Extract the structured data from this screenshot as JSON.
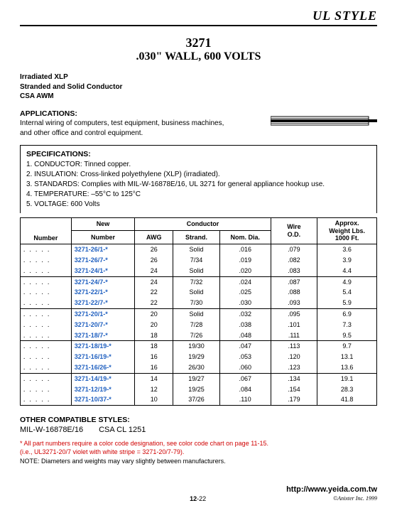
{
  "header": {
    "ulstyle": "UL STYLE"
  },
  "title": {
    "num": "3271",
    "sub": ".030\" WALL, 600 VOLTS"
  },
  "subtitle": [
    "Irradiated XLP",
    "Stranded and Solid Conductor",
    "CSA AWM"
  ],
  "applications": {
    "head": "APPLICATIONS:",
    "text": "Internal wiring of computers, test equipment, business machines, and other office and control equipment."
  },
  "specifications": {
    "head": "SPECIFICATIONS:",
    "items": [
      "1.  CONDUCTOR: Tinned copper.",
      "2.  INSULATION: Cross-linked polyethylene (XLP) (irradiated).",
      "3.  STANDARDS: Complies with MIL-W-16878E/16, UL 3271 for general appliance hookup use.",
      "4.  TEMPERATURE: –55°C to 125°C",
      "5.  VOLTAGE: 600 Volts"
    ]
  },
  "table": {
    "headers": {
      "col0": "Number",
      "new": "New",
      "number": "Number",
      "conductor": "Conductor",
      "awg": "AWG",
      "strand": "Strand.",
      "nomdia": "Nom. Dia.",
      "wireod": "Wire O.D.",
      "weight": "Approx. Weight Lbs. 1000 Ft."
    },
    "rows": [
      {
        "g": true,
        "dots": ". . . . .",
        "num": "3271-26/1-*",
        "awg": "26",
        "strand": "Solid",
        "nom": ".016",
        "od": ".079",
        "wt": "3.6"
      },
      {
        "g": false,
        "dots": ". . . . .",
        "num": "3271-26/7-*",
        "awg": "26",
        "strand": "7/34",
        "nom": ".019",
        "od": ".082",
        "wt": "3.9"
      },
      {
        "g": false,
        "dots": ". . . . .",
        "num": "3271-24/1-*",
        "awg": "24",
        "strand": "Solid",
        "nom": ".020",
        "od": ".083",
        "wt": "4.4"
      },
      {
        "g": true,
        "dots": ". . . . .",
        "num": "3271-24/7-*",
        "awg": "24",
        "strand": "7/32",
        "nom": ".024",
        "od": ".087",
        "wt": "4.9"
      },
      {
        "g": false,
        "dots": ". . . . .",
        "num": "3271-22/1-*",
        "awg": "22",
        "strand": "Solid",
        "nom": ".025",
        "od": ".088",
        "wt": "5.4"
      },
      {
        "g": false,
        "dots": ". . . . .",
        "num": "3271-22/7-*",
        "awg": "22",
        "strand": "7/30",
        "nom": ".030",
        "od": ".093",
        "wt": "5.9"
      },
      {
        "g": true,
        "dots": ". . . . .",
        "num": "3271-20/1-*",
        "awg": "20",
        "strand": "Solid",
        "nom": ".032",
        "od": ".095",
        "wt": "6.9"
      },
      {
        "g": false,
        "dots": ". . . . .",
        "num": "3271-20/7-*",
        "awg": "20",
        "strand": "7/28",
        "nom": ".038",
        "od": ".101",
        "wt": "7.3"
      },
      {
        "g": false,
        "dots": ". . . . .",
        "num": "3271-18/7-*",
        "awg": "18",
        "strand": "7/26",
        "nom": ".048",
        "od": ".111",
        "wt": "9.5"
      },
      {
        "g": true,
        "dots": ". . . . .",
        "num": "3271-18/19-*",
        "awg": "18",
        "strand": "19/30",
        "nom": ".047",
        "od": ".113",
        "wt": "9.7"
      },
      {
        "g": false,
        "dots": ". . . . .",
        "num": "3271-16/19-*",
        "awg": "16",
        "strand": "19/29",
        "nom": ".053",
        "od": ".120",
        "wt": "13.1"
      },
      {
        "g": false,
        "dots": ". . . . .",
        "num": "3271-16/26-*",
        "awg": "16",
        "strand": "26/30",
        "nom": ".060",
        "od": ".123",
        "wt": "13.6"
      },
      {
        "g": true,
        "dots": ". . . . .",
        "num": "3271-14/19-*",
        "awg": "14",
        "strand": "19/27",
        "nom": ".067",
        "od": ".134",
        "wt": "19.1"
      },
      {
        "g": false,
        "dots": ". . . . .",
        "num": "3271-12/19-*",
        "awg": "12",
        "strand": "19/25",
        "nom": ".084",
        "od": ".154",
        "wt": "28.3"
      },
      {
        "g": false,
        "dots": ". . . . .",
        "num": "3271-10/37-*",
        "awg": "10",
        "strand": "37/26",
        "nom": ".110",
        "od": ".179",
        "wt": "41.8"
      }
    ]
  },
  "other": {
    "head": "OTHER COMPATIBLE STYLES:",
    "text": "MIL-W-16878E/16  CSA CL 1251"
  },
  "footnote": {
    "red1": "* All part numbers require a color code designation, see color code chart on page 11-15.",
    "red2": "(i.e., UL3271-20/7 violet with white stripe = 3271-20/7-79).",
    "note": "NOTE: Diameters and weights may vary slightly between manufacturers."
  },
  "footer": {
    "url": "http://www.yeida.com.tw",
    "page_prefix": "12",
    "page_suffix": "-22",
    "copy": "©Anixter Inc. 1999"
  }
}
